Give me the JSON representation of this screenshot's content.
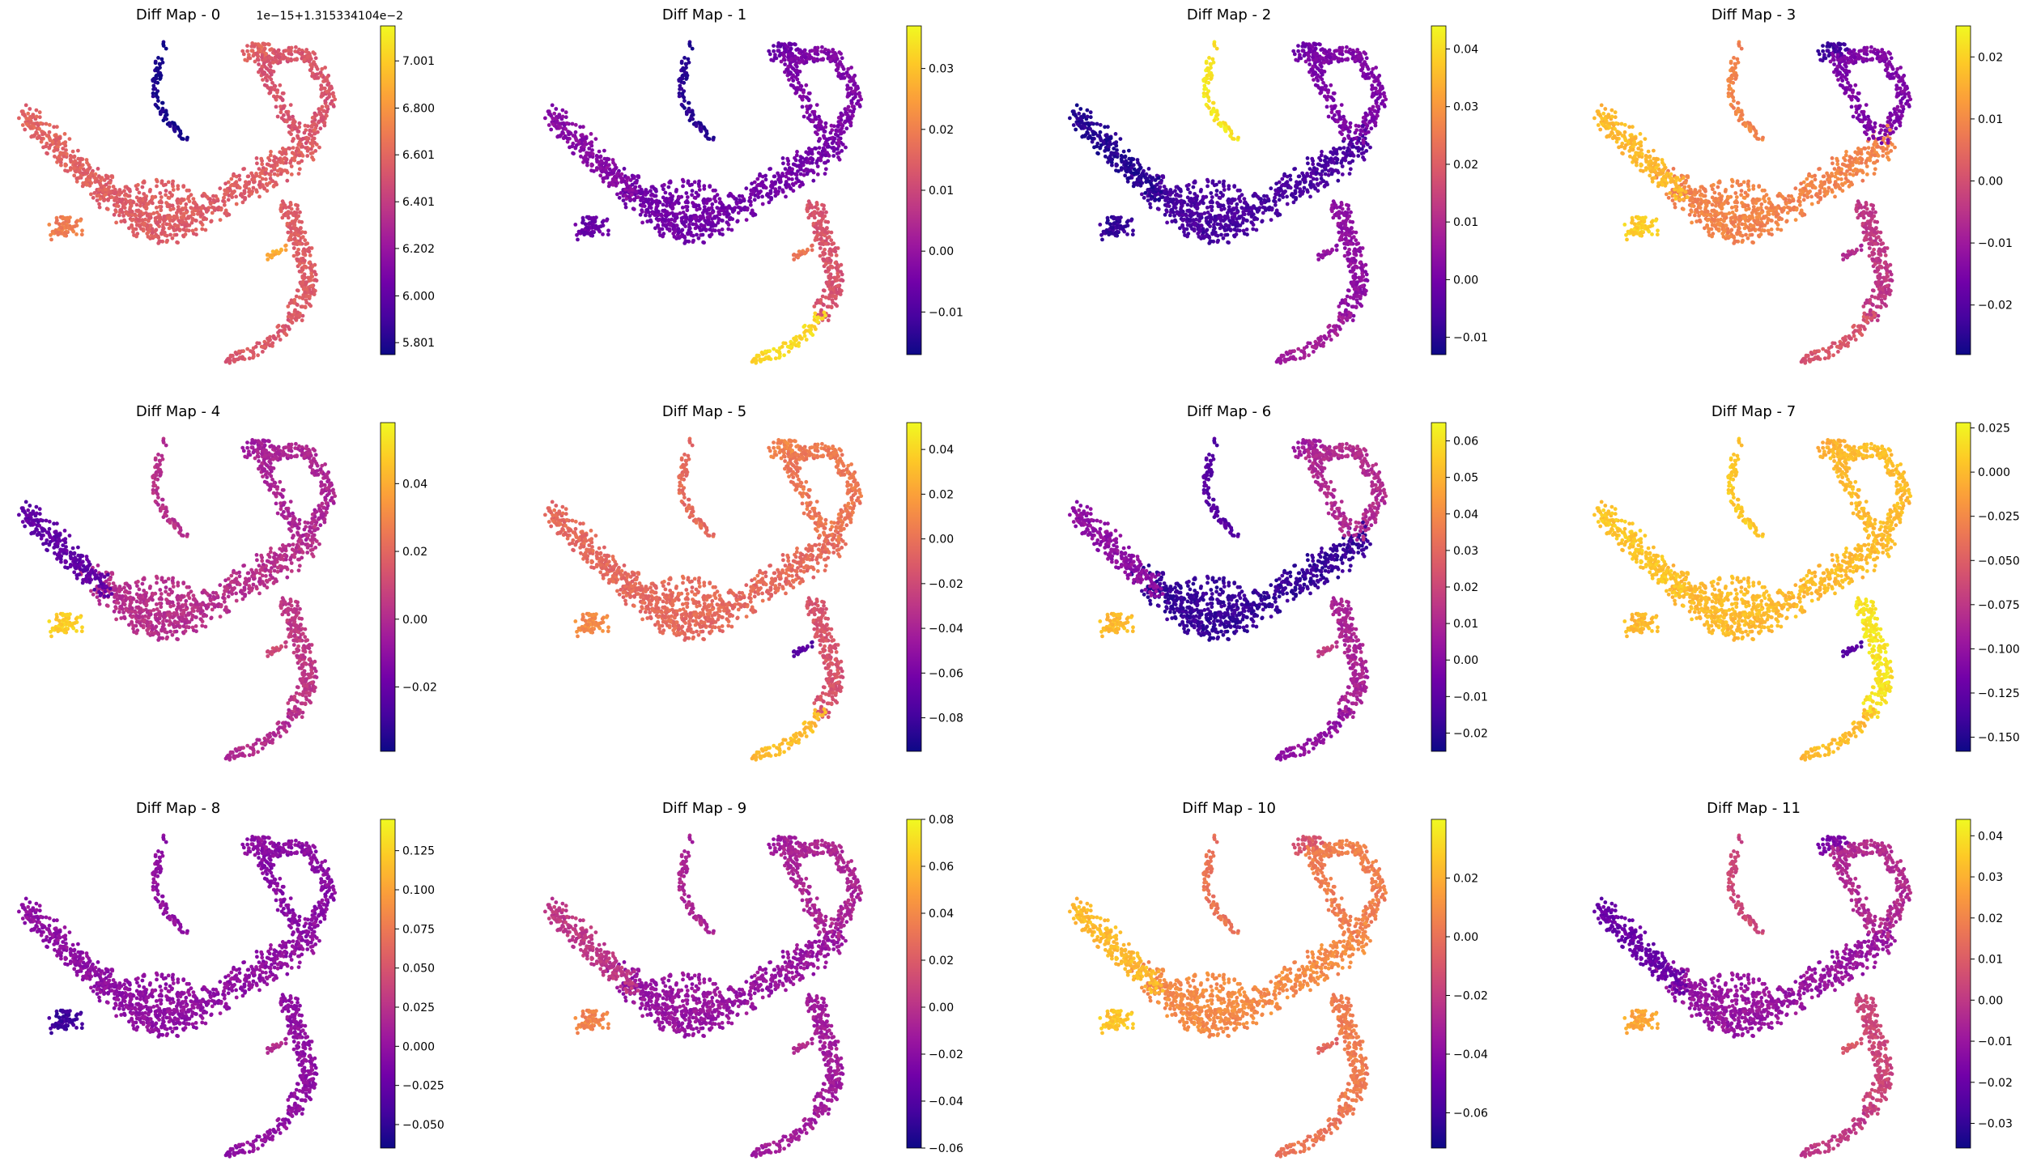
{
  "colormap": "plasma",
  "colormap_stops": [
    "#0d0887",
    "#46039f",
    "#7201a8",
    "#9c179e",
    "#bd3786",
    "#d8576b",
    "#ed7953",
    "#fb9f3a",
    "#fdca26",
    "#f0f921"
  ],
  "chart_data": [
    {
      "type": "scatter",
      "title": "Diff Map - 0",
      "colorbar": {
        "offset": "1e−15+1.315334104e−2",
        "range": [
          5.75,
          7.15
        ],
        "ticks": [
          5.801,
          6.0,
          6.202,
          6.401,
          6.601,
          6.8,
          7.001
        ],
        "tick_labels": [
          "5.801",
          "6.000",
          "6.202",
          "6.401",
          "6.601",
          "6.800",
          "7.001"
        ]
      },
      "regions": {
        "left_branch": 0.6,
        "core": 0.58,
        "right_arc": 0.55,
        "right_tip": 0.6,
        "lower_branch": 0.58,
        "lower_tail": 0.56,
        "lower_stub": 0.8,
        "blob": 0.68,
        "top_arm": 0.02
      }
    },
    {
      "type": "scatter",
      "title": "Diff Map - 1",
      "colorbar": {
        "offset": "",
        "range": [
          -0.017,
          0.037
        ],
        "ticks": [
          -0.01,
          0.0,
          0.01,
          0.02,
          0.03
        ],
        "tick_labels": [
          "−0.01",
          "0.00",
          "0.01",
          "0.02",
          "0.03"
        ]
      },
      "regions": {
        "left_branch": 0.28,
        "core": 0.22,
        "right_arc": 0.25,
        "right_tip": 0.2,
        "lower_branch": 0.55,
        "lower_tail": 0.92,
        "lower_stub": 0.65,
        "blob": 0.2,
        "top_arm": 0.05
      }
    },
    {
      "type": "scatter",
      "title": "Diff Map - 2",
      "colorbar": {
        "offset": "",
        "range": [
          -0.013,
          0.044
        ],
        "ticks": [
          -0.01,
          0.0,
          0.01,
          0.02,
          0.03,
          0.04
        ],
        "tick_labels": [
          "−0.01",
          "0.00",
          "0.01",
          "0.02",
          "0.03",
          "0.04"
        ]
      },
      "regions": {
        "left_branch": 0.05,
        "core": 0.12,
        "right_arc": 0.25,
        "right_tip": 0.22,
        "lower_branch": 0.3,
        "lower_tail": 0.35,
        "lower_stub": 0.3,
        "blob": 0.08,
        "top_arm": 0.95
      }
    },
    {
      "type": "scatter",
      "title": "Diff Map - 3",
      "colorbar": {
        "offset": "",
        "range": [
          -0.028,
          0.025
        ],
        "ticks": [
          -0.02,
          -0.01,
          0.0,
          0.01,
          0.02
        ],
        "tick_labels": [
          "−0.02",
          "−0.01",
          "0.00",
          "0.01",
          "0.02"
        ]
      },
      "regions": {
        "left_branch": 0.85,
        "core": 0.7,
        "right_arc": 0.25,
        "right_tip": 0.1,
        "lower_branch": 0.45,
        "lower_tail": 0.55,
        "lower_stub": 0.4,
        "blob": 0.9,
        "top_arm": 0.7
      }
    },
    {
      "type": "scatter",
      "title": "Diff Map - 4",
      "colorbar": {
        "offset": "",
        "range": [
          -0.039,
          0.058
        ],
        "ticks": [
          -0.02,
          0.0,
          0.02,
          0.04
        ],
        "tick_labels": [
          "−0.02",
          "0.00",
          "0.02",
          "0.04"
        ]
      },
      "regions": {
        "left_branch": 0.18,
        "core": 0.42,
        "right_arc": 0.38,
        "right_tip": 0.35,
        "lower_branch": 0.45,
        "lower_tail": 0.4,
        "lower_stub": 0.5,
        "blob": 0.9,
        "top_arm": 0.42
      }
    },
    {
      "type": "scatter",
      "title": "Diff Map - 5",
      "colorbar": {
        "offset": "",
        "range": [
          -0.095,
          0.052
        ],
        "ticks": [
          -0.08,
          -0.06,
          -0.04,
          -0.02,
          0.0,
          0.02,
          0.04
        ],
        "tick_labels": [
          "−0.08",
          "−0.06",
          "−0.04",
          "−0.02",
          "0.00",
          "0.02",
          "0.04"
        ]
      },
      "regions": {
        "left_branch": 0.62,
        "core": 0.62,
        "right_arc": 0.66,
        "right_tip": 0.7,
        "lower_branch": 0.55,
        "lower_tail": 0.85,
        "lower_stub": 0.15,
        "blob": 0.72,
        "top_arm": 0.62
      }
    },
    {
      "type": "scatter",
      "title": "Diff Map - 6",
      "colorbar": {
        "offset": "",
        "range": [
          -0.025,
          0.065
        ],
        "ticks": [
          -0.02,
          -0.01,
          0.0,
          0.01,
          0.02,
          0.03,
          0.04,
          0.05,
          0.06
        ],
        "tick_labels": [
          "−0.02",
          "−0.01",
          "0.00",
          "0.01",
          "0.02",
          "0.03",
          "0.04",
          "0.05",
          "0.06"
        ]
      },
      "regions": {
        "left_branch": 0.3,
        "core": 0.08,
        "right_arc": 0.4,
        "right_tip": 0.35,
        "lower_branch": 0.38,
        "lower_tail": 0.3,
        "lower_stub": 0.45,
        "blob": 0.85,
        "top_arm": 0.15
      }
    },
    {
      "type": "scatter",
      "title": "Diff Map - 7",
      "colorbar": {
        "offset": "",
        "range": [
          -0.158,
          0.028
        ],
        "ticks": [
          -0.15,
          -0.125,
          -0.1,
          -0.075,
          -0.05,
          -0.025,
          0.0,
          0.025
        ],
        "tick_labels": [
          "−0.150",
          "−0.125",
          "−0.100",
          "−0.075",
          "−0.050",
          "−0.025",
          "0.000",
          "0.025"
        ]
      },
      "regions": {
        "left_branch": 0.88,
        "core": 0.85,
        "right_arc": 0.85,
        "right_tip": 0.82,
        "lower_branch": 0.95,
        "lower_tail": 0.85,
        "lower_stub": 0.15,
        "blob": 0.85,
        "top_arm": 0.88
      }
    },
    {
      "type": "scatter",
      "title": "Diff Map - 8",
      "colorbar": {
        "offset": "",
        "range": [
          -0.065,
          0.145
        ],
        "ticks": [
          -0.05,
          -0.025,
          0.0,
          0.025,
          0.05,
          0.075,
          0.1,
          0.125
        ],
        "tick_labels": [
          "−0.050",
          "−0.025",
          "0.000",
          "0.025",
          "0.050",
          "0.075",
          "0.100",
          "0.125"
        ]
      },
      "regions": {
        "left_branch": 0.3,
        "core": 0.3,
        "right_arc": 0.28,
        "right_tip": 0.3,
        "lower_branch": 0.3,
        "lower_tail": 0.3,
        "lower_stub": 0.4,
        "blob": 0.1,
        "top_arm": 0.3
      }
    },
    {
      "type": "scatter",
      "title": "Diff Map - 9",
      "colorbar": {
        "offset": "",
        "range": [
          -0.06,
          0.08
        ],
        "ticks": [
          -0.06,
          -0.04,
          -0.02,
          0.0,
          0.02,
          0.04,
          0.06,
          0.08
        ],
        "tick_labels": [
          "−0.06",
          "−0.04",
          "−0.02",
          "0.00",
          "0.02",
          "0.04",
          "0.06",
          "0.08"
        ]
      },
      "regions": {
        "left_branch": 0.45,
        "core": 0.32,
        "right_arc": 0.38,
        "right_tip": 0.35,
        "lower_branch": 0.35,
        "lower_tail": 0.35,
        "lower_stub": 0.4,
        "blob": 0.7,
        "top_arm": 0.38
      }
    },
    {
      "type": "scatter",
      "title": "Diff Map - 10",
      "colorbar": {
        "offset": "",
        "range": [
          -0.072,
          0.04
        ],
        "ticks": [
          -0.06,
          -0.04,
          -0.02,
          0.0,
          0.02
        ],
        "tick_labels": [
          "−0.06",
          "−0.04",
          "−0.02",
          "0.00",
          "0.02"
        ]
      },
      "regions": {
        "left_branch": 0.85,
        "core": 0.72,
        "right_arc": 0.68,
        "right_tip": 0.55,
        "lower_branch": 0.68,
        "lower_tail": 0.65,
        "lower_stub": 0.6,
        "blob": 0.88,
        "top_arm": 0.65
      }
    },
    {
      "type": "scatter",
      "title": "Diff Map - 11",
      "colorbar": {
        "offset": "",
        "range": [
          -0.036,
          0.044
        ],
        "ticks": [
          -0.03,
          -0.02,
          -0.01,
          0.0,
          0.01,
          0.02,
          0.03,
          0.04
        ],
        "tick_labels": [
          "−0.03",
          "−0.02",
          "−0.01",
          "0.00",
          "0.01",
          "0.02",
          "0.03",
          "0.04"
        ]
      },
      "regions": {
        "left_branch": 0.2,
        "core": 0.32,
        "right_arc": 0.4,
        "right_tip": 0.25,
        "lower_branch": 0.5,
        "lower_tail": 0.45,
        "lower_stub": 0.55,
        "blob": 0.8,
        "top_arm": 0.5
      }
    }
  ]
}
